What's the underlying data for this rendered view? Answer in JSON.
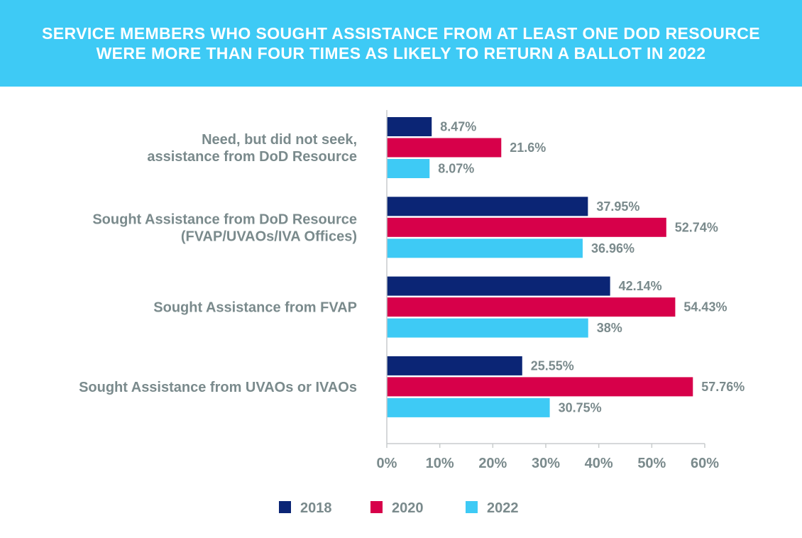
{
  "header": {
    "title_line1": "SERVICE MEMBERS WHO SOUGHT ASSISTANCE FROM AT LEAST ONE DOD RESOURCE",
    "title_line2": "WERE MORE THAN FOUR TIMES AS LIKELY TO RETURN A BALLOT IN 2022",
    "background_color": "#3ecaf5"
  },
  "chart_data": {
    "type": "bar",
    "orientation": "horizontal",
    "title": "SERVICE MEMBERS WHO SOUGHT ASSISTANCE FROM AT LEAST ONE DOD RESOURCE WERE MORE THAN FOUR TIMES AS LIKELY TO RETURN A BALLOT IN 2022",
    "categories": [
      [
        "Need, but did not seek,",
        "assistance from DoD Resource"
      ],
      [
        "Sought Assistance from DoD Resource",
        "(FVAP/UVAOs/IVA Offices)"
      ],
      [
        "Sought Assistance from FVAP"
      ],
      [
        "Sought Assistance from UVAOs or IVAOs"
      ]
    ],
    "series": [
      {
        "name": "2018",
        "color": "#0b2575",
        "values": [
          8.47,
          37.95,
          42.14,
          25.55
        ],
        "labels": [
          "8.47%",
          "37.95%",
          "42.14%",
          "25.55%"
        ]
      },
      {
        "name": "2020",
        "color": "#d7004a",
        "values": [
          21.6,
          52.74,
          54.43,
          57.76
        ],
        "labels": [
          "21.6%",
          "52.74%",
          "54.43%",
          "57.76%"
        ]
      },
      {
        "name": "2022",
        "color": "#3ecaf5",
        "values": [
          8.07,
          36.96,
          38,
          30.75
        ],
        "labels": [
          "8.07%",
          "36.96%",
          "38%",
          "30.75%"
        ]
      }
    ],
    "xlim": [
      0,
      60
    ],
    "xticks": [
      0,
      10,
      20,
      30,
      40,
      50,
      60
    ],
    "xtick_labels": [
      "0%",
      "10%",
      "20%",
      "30%",
      "40%",
      "50%",
      "60%"
    ],
    "xlabel": "",
    "ylabel": "",
    "grid": false,
    "legend": "bottom",
    "text_color": "#7a8a8c"
  }
}
